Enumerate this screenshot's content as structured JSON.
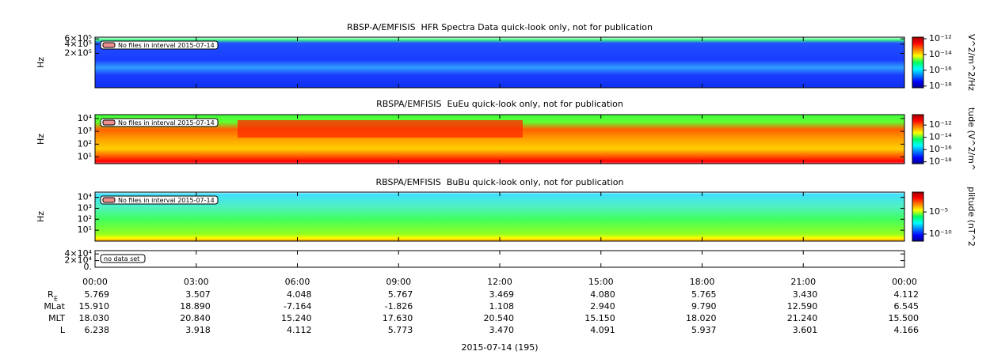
{
  "panels": [
    {
      "title": "RBSP-A/EMFISIS  HFR Spectra Data quick-look only, not for publication",
      "ylabel": "Hz",
      "ylim": [
        15000,
        680000
      ],
      "ylog": true,
      "yticks": [
        {
          "value": 200000,
          "label": "2×10⁵"
        },
        {
          "value": 400000,
          "label": "4×10⁵"
        },
        {
          "value": 600000,
          "label": "6×10⁵"
        }
      ],
      "note": "No files in interval 2015-07-14",
      "zlabel": "V^2/m^2/Hz",
      "zlim": [
        6e-19,
        1.6e-12
      ],
      "zticks": [
        {
          "value": 1e-18,
          "label": "10⁻¹⁸"
        },
        {
          "value": 1e-16,
          "label": "10⁻¹⁶"
        },
        {
          "value": 1e-14,
          "label": "10⁻¹⁴"
        },
        {
          "value": 1e-12,
          "label": "10⁻¹²"
        }
      ]
    },
    {
      "title": "RBSPA/EMFISIS  EuEu quick-look only, not for publication",
      "ylabel": "Hz",
      "ylim": [
        3,
        20000
      ],
      "ylog": true,
      "yticks": [
        {
          "value": 10,
          "label": "10¹"
        },
        {
          "value": 100,
          "label": "10²"
        },
        {
          "value": 1000,
          "label": "10³"
        },
        {
          "value": 10000,
          "label": "10⁴"
        }
      ],
      "note": "No files in interval 2015-07-14",
      "zlabel": "tude (V^2/m^",
      "zlim": [
        5e-19,
        5e-11
      ],
      "zticks": [
        {
          "value": 1e-18,
          "label": "10⁻¹⁸"
        },
        {
          "value": 1e-16,
          "label": "10⁻¹⁶"
        },
        {
          "value": 1e-14,
          "label": "10⁻¹⁴"
        },
        {
          "value": 1e-12,
          "label": "10⁻¹²"
        }
      ]
    },
    {
      "title": "RBSPA/EMFISIS  BuBu quick-look only, not for publication",
      "ylabel": "Hz",
      "ylim": [
        1,
        30000
      ],
      "ylog": true,
      "yticks": [
        {
          "value": 10,
          "label": "10¹"
        },
        {
          "value": 100,
          "label": "10²"
        },
        {
          "value": 1000,
          "label": "10³"
        },
        {
          "value": 10000,
          "label": "10⁴"
        }
      ],
      "note": "No files in interval 2015-07-14",
      "zlabel": "plitude (nT^2",
      "zlim": [
        2.5e-12,
        0.3
      ],
      "zticks": [
        {
          "value": 1e-10,
          "label": "10⁻¹⁰"
        },
        {
          "value": 1e-05,
          "label": "10⁻⁵"
        }
      ]
    },
    {
      "ylim": [
        0,
        50000
      ],
      "ylog": false,
      "yticks": [
        {
          "value": 0,
          "label": "0."
        },
        {
          "value": 20000,
          "label": "2×10⁴"
        },
        {
          "value": 40000,
          "label": "4×10⁴"
        }
      ],
      "note": "no data set"
    }
  ],
  "time_axis": {
    "labels": [
      "00:00",
      "03:00",
      "06:00",
      "09:00",
      "12:00",
      "15:00",
      "18:00",
      "21:00",
      "00:00"
    ]
  },
  "ephemeris": {
    "rows": [
      {
        "label": "R",
        "subscript": "E",
        "values": [
          "5.769",
          "3.507",
          "4.048",
          "5.767",
          "3.469",
          "4.080",
          "5.765",
          "3.430",
          "4.112"
        ]
      },
      {
        "label": "MLat",
        "values": [
          "15.910",
          "18.890",
          "-7.164",
          "-1.826",
          "1.108",
          "2.940",
          "9.790",
          "12.590",
          "6.545"
        ]
      },
      {
        "label": "MLT",
        "values": [
          "18.030",
          "20.840",
          "15.240",
          "17.630",
          "20.540",
          "15.150",
          "18.020",
          "21.240",
          "15.500"
        ]
      },
      {
        "label": "L",
        "values": [
          "6.238",
          "3.918",
          "4.112",
          "5.773",
          "3.470",
          "4.091",
          "5.937",
          "3.601",
          "4.166"
        ]
      }
    ]
  },
  "date": "2015-07-14 (195)"
}
